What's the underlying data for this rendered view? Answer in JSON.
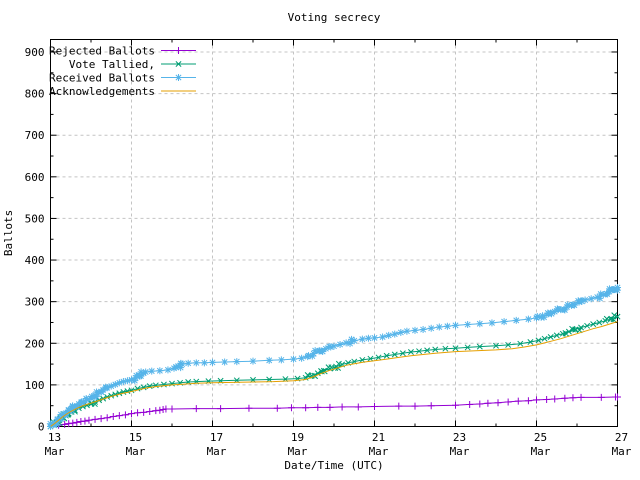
{
  "window": {
    "background": "#ffffff"
  },
  "chart_data": {
    "type": "line",
    "title": "Voting secrecy",
    "xlabel": "Date/Time (UTC)",
    "ylabel": "Ballots",
    "x_unit": "days since 13 Mar 00:00 UTC",
    "xlim": [
      0,
      14
    ],
    "ylim": [
      0,
      930
    ],
    "grid": true,
    "grid_color": "#c4c4c4",
    "border_color": "#000000",
    "text_color": "#000000",
    "legend_position": "top-left",
    "yticks": [
      {
        "value": 0,
        "label": "0"
      },
      {
        "value": 100,
        "label": "100"
      },
      {
        "value": 200,
        "label": "200"
      },
      {
        "value": 300,
        "label": "300"
      },
      {
        "value": 400,
        "label": "400"
      },
      {
        "value": 500,
        "label": "500"
      },
      {
        "value": 600,
        "label": "600"
      },
      {
        "value": 700,
        "label": "700"
      },
      {
        "value": 800,
        "label": "800"
      },
      {
        "value": 900,
        "label": "900"
      }
    ],
    "y_minor_step": 50,
    "xticks": [
      {
        "day": 0,
        "line1": "13",
        "line2": "Mar"
      },
      {
        "day": 2,
        "line1": "15",
        "line2": "Mar"
      },
      {
        "day": 4,
        "line1": "17",
        "line2": "Mar"
      },
      {
        "day": 6,
        "line1": "19",
        "line2": "Mar"
      },
      {
        "day": 8,
        "line1": "21",
        "line2": "Mar"
      },
      {
        "day": 10,
        "line1": "23",
        "line2": "Mar"
      },
      {
        "day": 12,
        "line1": "25",
        "line2": "Mar"
      },
      {
        "day": 14,
        "line1": "27",
        "line2": "Mar"
      }
    ],
    "x_minor_days": [
      1,
      3,
      5,
      7,
      9,
      11,
      13
    ],
    "series": [
      {
        "name": "Rejected Ballots",
        "color": "#9400d3",
        "marker": "plus",
        "points": [
          [
            0,
            0
          ],
          [
            0.2,
            3
          ],
          [
            0.35,
            5
          ],
          [
            0.45,
            7
          ],
          [
            0.55,
            8
          ],
          [
            0.65,
            10
          ],
          [
            0.75,
            12
          ],
          [
            0.85,
            13
          ],
          [
            0.95,
            15
          ],
          [
            1.1,
            17
          ],
          [
            1.25,
            19
          ],
          [
            1.4,
            21
          ],
          [
            1.55,
            24
          ],
          [
            1.7,
            26
          ],
          [
            1.85,
            28
          ],
          [
            2.0,
            31
          ],
          [
            2.15,
            33
          ],
          [
            2.3,
            34
          ],
          [
            2.45,
            36
          ],
          [
            2.6,
            38
          ],
          [
            2.7,
            39
          ],
          [
            2.78,
            41
          ],
          [
            2.85,
            42
          ],
          [
            3.0,
            42
          ],
          [
            3.6,
            43
          ],
          [
            4.2,
            43
          ],
          [
            4.9,
            44
          ],
          [
            5.6,
            44
          ],
          [
            5.95,
            45
          ],
          [
            6.3,
            45
          ],
          [
            6.6,
            46
          ],
          [
            6.9,
            46
          ],
          [
            7.2,
            47
          ],
          [
            7.6,
            47
          ],
          [
            8.0,
            48
          ],
          [
            8.6,
            49
          ],
          [
            9.0,
            49
          ],
          [
            9.4,
            50
          ],
          [
            10.0,
            51
          ],
          [
            10.35,
            53
          ],
          [
            10.6,
            54
          ],
          [
            10.8,
            56
          ],
          [
            11.05,
            57
          ],
          [
            11.3,
            59
          ],
          [
            11.55,
            61
          ],
          [
            11.8,
            62
          ],
          [
            12.0,
            64
          ],
          [
            12.25,
            65
          ],
          [
            12.45,
            66
          ],
          [
            12.7,
            68
          ],
          [
            12.9,
            69
          ],
          [
            13.1,
            70
          ],
          [
            13.6,
            70
          ],
          [
            13.95,
            71
          ],
          [
            14,
            71
          ]
        ]
      },
      {
        "name": "Vote Tallied,",
        "color": "#009e73",
        "marker": "cross",
        "points": [
          [
            0,
            0
          ],
          [
            0.08,
            4
          ],
          [
            0.15,
            9
          ],
          [
            0.22,
            15
          ],
          [
            0.3,
            21
          ],
          [
            0.38,
            26
          ],
          [
            0.45,
            31
          ],
          [
            0.52,
            35
          ],
          [
            0.6,
            39
          ],
          [
            0.7,
            44
          ],
          [
            0.8,
            48
          ],
          [
            0.9,
            51
          ],
          [
            1.0,
            54
          ],
          [
            1.1,
            59
          ],
          [
            1.2,
            63
          ],
          [
            1.3,
            67
          ],
          [
            1.4,
            71
          ],
          [
            1.5,
            74
          ],
          [
            1.6,
            77
          ],
          [
            1.7,
            80
          ],
          [
            1.8,
            83
          ],
          [
            1.9,
            85
          ],
          [
            2.0,
            87
          ],
          [
            2.15,
            91
          ],
          [
            2.3,
            94
          ],
          [
            2.45,
            97
          ],
          [
            2.6,
            99
          ],
          [
            2.8,
            101
          ],
          [
            3.0,
            103
          ],
          [
            3.2,
            105
          ],
          [
            3.4,
            107
          ],
          [
            3.6,
            108
          ],
          [
            3.9,
            109
          ],
          [
            4.2,
            110
          ],
          [
            4.6,
            111
          ],
          [
            5.0,
            112
          ],
          [
            5.4,
            113
          ],
          [
            5.8,
            114
          ],
          [
            6.1,
            115
          ],
          [
            6.3,
            117
          ],
          [
            6.45,
            122
          ],
          [
            6.6,
            128
          ],
          [
            6.75,
            134
          ],
          [
            6.9,
            139
          ],
          [
            7.05,
            144
          ],
          [
            7.2,
            149
          ],
          [
            7.35,
            153
          ],
          [
            7.5,
            156
          ],
          [
            7.7,
            160
          ],
          [
            7.9,
            163
          ],
          [
            8.1,
            166
          ],
          [
            8.3,
            170
          ],
          [
            8.5,
            173
          ],
          [
            8.7,
            176
          ],
          [
            8.9,
            179
          ],
          [
            9.1,
            181
          ],
          [
            9.3,
            183
          ],
          [
            9.5,
            185
          ],
          [
            9.75,
            187
          ],
          [
            10.0,
            188
          ],
          [
            10.3,
            190
          ],
          [
            10.6,
            192
          ],
          [
            11.0,
            194
          ],
          [
            11.3,
            196
          ],
          [
            11.6,
            199
          ],
          [
            11.85,
            203
          ],
          [
            12.05,
            207
          ],
          [
            12.2,
            211
          ],
          [
            12.35,
            215
          ],
          [
            12.5,
            219
          ],
          [
            12.65,
            223
          ],
          [
            12.8,
            228
          ],
          [
            12.95,
            233
          ],
          [
            13.1,
            238
          ],
          [
            13.25,
            242
          ],
          [
            13.4,
            246
          ],
          [
            13.55,
            250
          ],
          [
            13.7,
            254
          ],
          [
            13.85,
            259
          ],
          [
            14,
            264
          ]
        ]
      },
      {
        "name": "Received Ballots",
        "color": "#56b4e9",
        "marker": "asterisk",
        "points": [
          [
            0,
            0
          ],
          [
            0.08,
            5
          ],
          [
            0.15,
            12
          ],
          [
            0.22,
            19
          ],
          [
            0.3,
            26
          ],
          [
            0.38,
            32
          ],
          [
            0.45,
            38
          ],
          [
            0.52,
            43
          ],
          [
            0.6,
            48
          ],
          [
            0.7,
            54
          ],
          [
            0.8,
            59
          ],
          [
            0.9,
            64
          ],
          [
            1.0,
            68
          ],
          [
            1.1,
            75
          ],
          [
            1.2,
            82
          ],
          [
            1.3,
            88
          ],
          [
            1.4,
            93
          ],
          [
            1.5,
            97
          ],
          [
            1.6,
            101
          ],
          [
            1.7,
            105
          ],
          [
            1.8,
            108
          ],
          [
            1.9,
            110
          ],
          [
            2.0,
            112
          ],
          [
            2.1,
            117
          ],
          [
            2.2,
            123
          ],
          [
            2.3,
            128
          ],
          [
            2.35,
            131
          ],
          [
            2.5,
            133
          ],
          [
            2.7,
            134
          ],
          [
            2.9,
            136
          ],
          [
            3.05,
            140
          ],
          [
            3.15,
            145
          ],
          [
            3.25,
            150
          ],
          [
            3.4,
            152
          ],
          [
            3.6,
            153
          ],
          [
            3.8,
            153
          ],
          [
            4.0,
            154
          ],
          [
            4.3,
            155
          ],
          [
            4.6,
            156
          ],
          [
            5.0,
            157
          ],
          [
            5.4,
            159
          ],
          [
            5.7,
            160
          ],
          [
            6.0,
            162
          ],
          [
            6.2,
            164
          ],
          [
            6.35,
            168
          ],
          [
            6.5,
            175
          ],
          [
            6.65,
            182
          ],
          [
            6.8,
            187
          ],
          [
            7.0,
            193
          ],
          [
            7.15,
            197
          ],
          [
            7.3,
            201
          ],
          [
            7.5,
            206
          ],
          [
            7.7,
            210
          ],
          [
            7.85,
            212
          ],
          [
            8.0,
            213
          ],
          [
            8.2,
            215
          ],
          [
            8.35,
            219
          ],
          [
            8.5,
            222
          ],
          [
            8.65,
            226
          ],
          [
            8.8,
            229
          ],
          [
            9.0,
            231
          ],
          [
            9.2,
            233
          ],
          [
            9.4,
            236
          ],
          [
            9.6,
            239
          ],
          [
            9.8,
            241
          ],
          [
            10.0,
            243
          ],
          [
            10.3,
            245
          ],
          [
            10.6,
            247
          ],
          [
            10.9,
            249
          ],
          [
            11.2,
            252
          ],
          [
            11.5,
            255
          ],
          [
            11.8,
            258
          ],
          [
            12.0,
            261
          ],
          [
            12.15,
            266
          ],
          [
            12.3,
            271
          ],
          [
            12.45,
            276
          ],
          [
            12.6,
            281
          ],
          [
            12.75,
            287
          ],
          [
            12.9,
            293
          ],
          [
            13.05,
            299
          ],
          [
            13.2,
            304
          ],
          [
            13.35,
            307
          ],
          [
            13.5,
            311
          ],
          [
            13.65,
            317
          ],
          [
            13.8,
            324
          ],
          [
            13.9,
            329
          ],
          [
            14,
            334
          ]
        ]
      },
      {
        "name": "Acknowledgements",
        "color": "#e69f00",
        "marker": "none",
        "points": [
          [
            0,
            0
          ],
          [
            0.1,
            7
          ],
          [
            0.2,
            15
          ],
          [
            0.3,
            23
          ],
          [
            0.4,
            30
          ],
          [
            0.5,
            36
          ],
          [
            0.6,
            41
          ],
          [
            0.7,
            46
          ],
          [
            0.8,
            50
          ],
          [
            0.9,
            53
          ],
          [
            1.0,
            56
          ],
          [
            1.15,
            61
          ],
          [
            1.3,
            66
          ],
          [
            1.45,
            71
          ],
          [
            1.6,
            75
          ],
          [
            1.75,
            79
          ],
          [
            1.9,
            82
          ],
          [
            2.0,
            84
          ],
          [
            2.2,
            89
          ],
          [
            2.4,
            93
          ],
          [
            2.6,
            96
          ],
          [
            2.8,
            98
          ],
          [
            3.0,
            100
          ],
          [
            3.3,
            102
          ],
          [
            3.6,
            104
          ],
          [
            4.0,
            105
          ],
          [
            4.5,
            106
          ],
          [
            5.0,
            107
          ],
          [
            5.5,
            108
          ],
          [
            6.0,
            110
          ],
          [
            6.3,
            113
          ],
          [
            6.5,
            120
          ],
          [
            6.7,
            128
          ],
          [
            6.9,
            135
          ],
          [
            7.1,
            141
          ],
          [
            7.3,
            147
          ],
          [
            7.5,
            151
          ],
          [
            7.75,
            155
          ],
          [
            8.0,
            158
          ],
          [
            8.3,
            162
          ],
          [
            8.6,
            166
          ],
          [
            8.9,
            170
          ],
          [
            9.2,
            173
          ],
          [
            9.5,
            176
          ],
          [
            10.0,
            180
          ],
          [
            10.5,
            182
          ],
          [
            11.0,
            184
          ],
          [
            11.4,
            187
          ],
          [
            11.7,
            191
          ],
          [
            12.0,
            196
          ],
          [
            12.2,
            201
          ],
          [
            12.4,
            206
          ],
          [
            12.6,
            211
          ],
          [
            12.8,
            217
          ],
          [
            13.0,
            223
          ],
          [
            13.2,
            229
          ],
          [
            13.4,
            235
          ],
          [
            13.6,
            240
          ],
          [
            13.8,
            246
          ],
          [
            14,
            252
          ]
        ]
      }
    ]
  }
}
